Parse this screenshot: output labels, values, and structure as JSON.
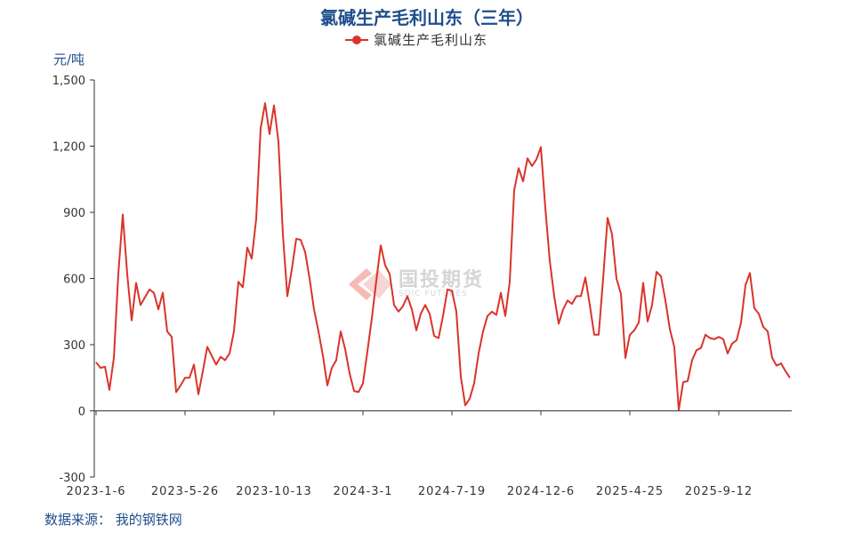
{
  "title": "氯碱生产毛利山东（三年）",
  "unit_label": "元/吨",
  "source": "数据来源：  我的钢铁网",
  "watermark": {
    "cn": "国投期货",
    "en": "SDIC FUTURES"
  },
  "colors": {
    "title": "#1f4e8c",
    "series": "#d9342b",
    "axis": "#333333",
    "text": "#333333"
  },
  "chart_data": {
    "type": "line",
    "title": "氯碱生产毛利山东（三年）",
    "ylabel": "元/吨",
    "ylim": [
      -300,
      1500
    ],
    "yticks": [
      -300,
      0,
      300,
      600,
      900,
      1200,
      1500
    ],
    "ytick_labels": [
      "-300",
      "0",
      "300",
      "600",
      "900",
      "1,200",
      "1,500"
    ],
    "xtick_labels": [
      "2023-1-6",
      "2023-5-26",
      "2023-10-13",
      "2024-3-1",
      "2024-7-19",
      "2024-12-6",
      "2025-4-25",
      "2025-9-12"
    ],
    "grid": false,
    "legend_position": "top-center",
    "series": [
      {
        "name": "氯碱生产毛利山东",
        "color": "#d9342b",
        "values": [
          220,
          195,
          200,
          95,
          240,
          620,
          890,
          620,
          410,
          580,
          480,
          515,
          550,
          535,
          460,
          535,
          360,
          335,
          85,
          115,
          150,
          150,
          210,
          75,
          180,
          290,
          250,
          210,
          245,
          230,
          260,
          360,
          585,
          560,
          740,
          690,
          870,
          1280,
          1395,
          1255,
          1385,
          1220,
          800,
          520,
          640,
          780,
          775,
          720,
          600,
          460,
          360,
          250,
          115,
          195,
          230,
          360,
          280,
          170,
          90,
          85,
          125,
          270,
          420,
          590,
          750,
          660,
          620,
          480,
          450,
          475,
          520,
          460,
          365,
          440,
          480,
          440,
          340,
          330,
          430,
          550,
          545,
          450,
          155,
          25,
          55,
          125,
          260,
          360,
          430,
          450,
          435,
          535,
          430,
          585,
          1000,
          1100,
          1040,
          1145,
          1110,
          1140,
          1195,
          920,
          680,
          520,
          395,
          460,
          500,
          485,
          520,
          520,
          605,
          480,
          345,
          345,
          600,
          875,
          800,
          600,
          530,
          240,
          345,
          365,
          400,
          580,
          405,
          480,
          630,
          610,
          500,
          370,
          290,
          5,
          130,
          135,
          230,
          275,
          285,
          345,
          330,
          325,
          335,
          325,
          260,
          305,
          320,
          400,
          570,
          625,
          465,
          440,
          380,
          360,
          240,
          205,
          215,
          180,
          150
        ]
      }
    ]
  }
}
